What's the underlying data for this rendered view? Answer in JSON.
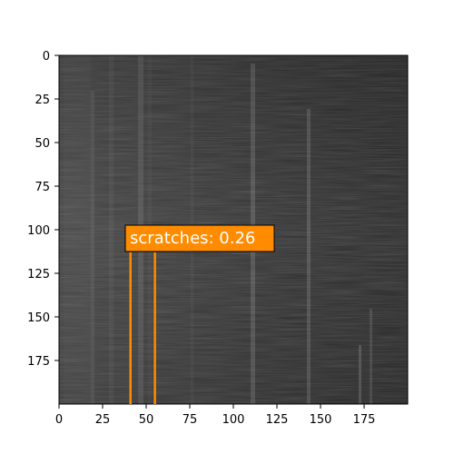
{
  "image": {
    "description_free": true,
    "x_range": [
      0,
      200
    ],
    "y_range": [
      0,
      200
    ],
    "x_ticks": [
      "0",
      "25",
      "50",
      "75",
      "100",
      "125",
      "150",
      "175"
    ],
    "y_ticks": [
      "0",
      "25",
      "50",
      "75",
      "100",
      "125",
      "150",
      "175"
    ]
  },
  "detection": {
    "label": "scratches: 0.26",
    "box": {
      "x_min": 41,
      "x_max": 55,
      "y_min": 113,
      "y_max": 200
    },
    "color": "#ff8c00"
  },
  "colors": {
    "background": "#ffffff",
    "axis": "#000000",
    "image_base": "#3a3a3a"
  }
}
